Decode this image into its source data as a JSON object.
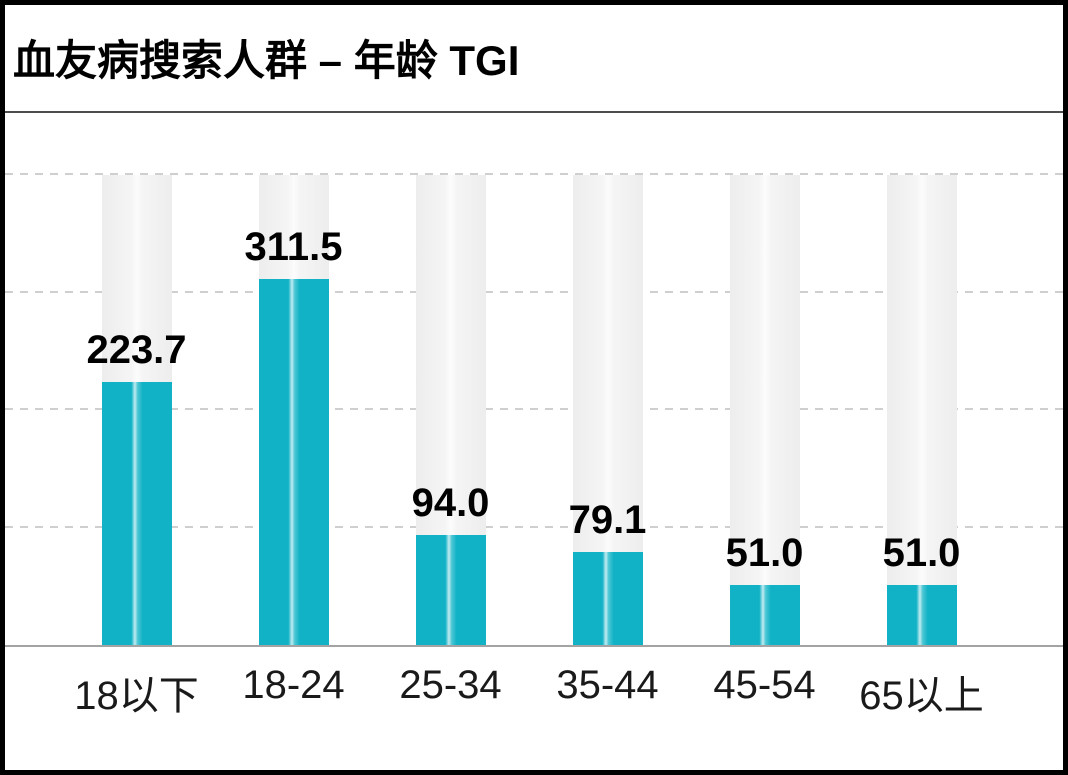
{
  "title": "血友病搜索人群 – 年龄 TGI",
  "chart_data": {
    "type": "bar",
    "title": "血友病搜索人群 – 年龄 TGI",
    "categories": [
      "18以下",
      "18-24",
      "25-34",
      "35-44",
      "45-54",
      "65以上"
    ],
    "values": [
      223.7,
      311.5,
      94.0,
      79.1,
      51.0,
      51.0
    ],
    "value_labels": [
      "223.7",
      "311.5",
      "94.0",
      "79.1",
      "51.0",
      "51.0"
    ],
    "xlabel": "",
    "ylabel": "",
    "ylim": [
      0,
      400
    ],
    "gridline_interval": 100,
    "grid": "horizontal-dashed",
    "legend": "none",
    "colors": {
      "bar": "#12b2c6",
      "bar_highlight_stripe": "#c2ecf1",
      "ghost_column": "#f0f0f0",
      "gridline": "#cfcfcf",
      "axis_line": "#a3a3a3",
      "title_text": "#000000",
      "value_label_text": "#000000",
      "category_label_text": "#1a1a1a",
      "background": "#ffffff",
      "frame_border": "#000000"
    }
  }
}
